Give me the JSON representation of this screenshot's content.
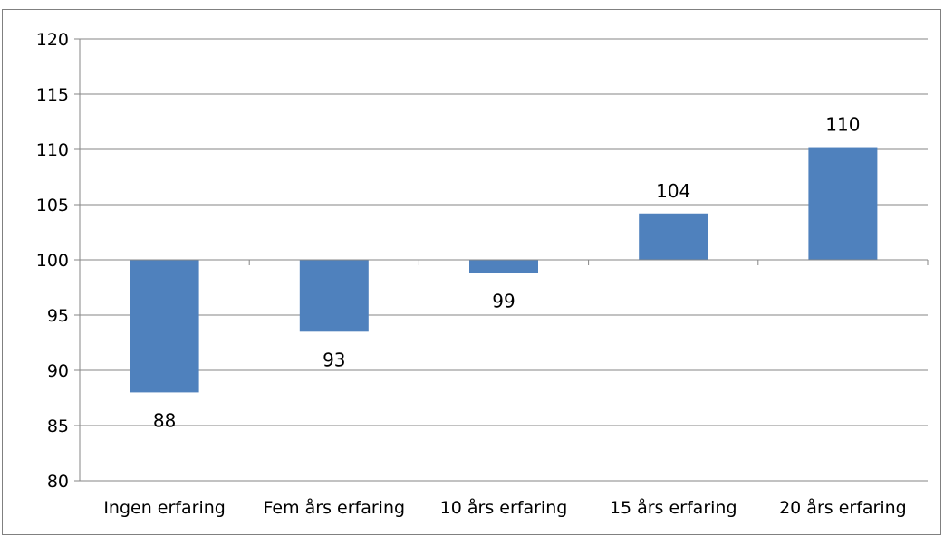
{
  "caption": "",
  "chart_data": {
    "type": "bar",
    "baseline": 100,
    "categories": [
      "Ingen erfaring",
      "Fem års erfaring",
      "10 års erfaring",
      "15 års erfaring",
      "20 års erfaring"
    ],
    "values": [
      88,
      93.5,
      98.8,
      104.2,
      110.2
    ],
    "data_labels": [
      "88",
      "93",
      "99",
      "104",
      "110"
    ],
    "ylim": [
      80,
      120
    ],
    "yticks": [
      "80",
      "85",
      "90",
      "95",
      "100",
      "105",
      "110",
      "115",
      "120"
    ],
    "grid": true,
    "legend": "none",
    "bar_color": "#4f81bd",
    "grid_color": "#868686"
  }
}
